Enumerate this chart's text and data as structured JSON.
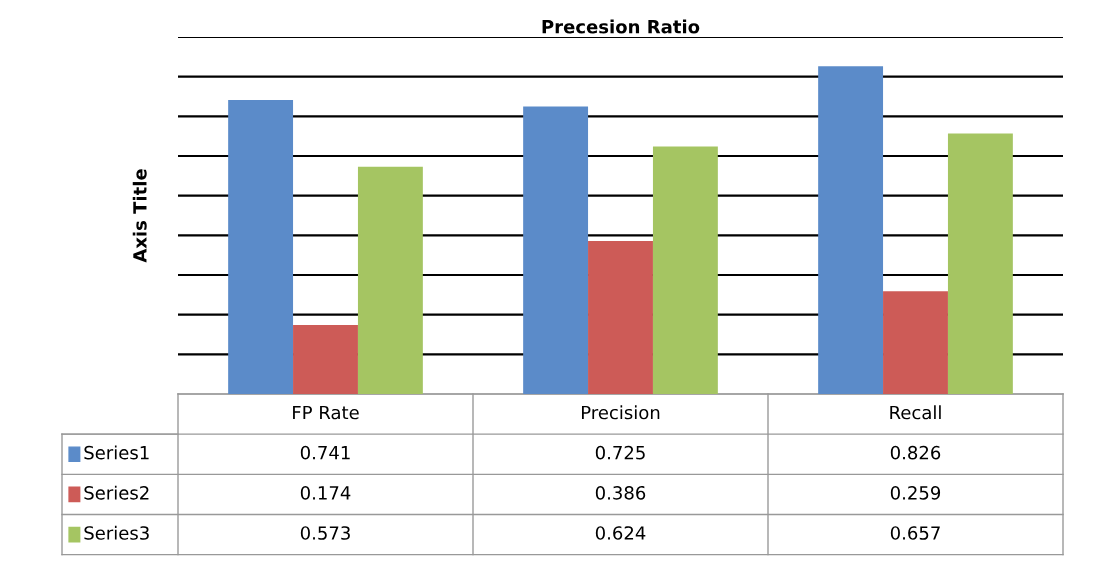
{
  "chart_data": {
    "type": "bar",
    "title": "Precesion Ratio",
    "ylabel": "Axis Title",
    "categories": [
      "FP Rate",
      "Precision",
      "Recall"
    ],
    "series": [
      {
        "name": "Series1",
        "color": "#5b8bc9",
        "values": [
          0.741,
          0.725,
          0.826
        ]
      },
      {
        "name": "Series2",
        "color": "#cd5b57",
        "values": [
          0.174,
          0.386,
          0.259
        ]
      },
      {
        "name": "Series3",
        "color": "#a5c562",
        "values": [
          0.573,
          0.624,
          0.657
        ]
      }
    ],
    "ylim": [
      0,
      0.9
    ],
    "yticks": [
      {
        "value": 0.1,
        "label": null
      },
      {
        "value": 0.2,
        "label": null
      },
      {
        "value": 0.3,
        "label": null
      },
      {
        "value": 0.4,
        "label": null
      },
      {
        "value": 0.5,
        "label": null
      },
      {
        "value": 0.6,
        "label": null
      },
      {
        "value": 0.7,
        "label": null
      },
      {
        "value": 0.8,
        "label": null
      },
      {
        "value": 0.9,
        "label": null
      }
    ],
    "grid": "y",
    "legend": "bottom left",
    "tick_labels": false,
    "data_labels": true
  }
}
